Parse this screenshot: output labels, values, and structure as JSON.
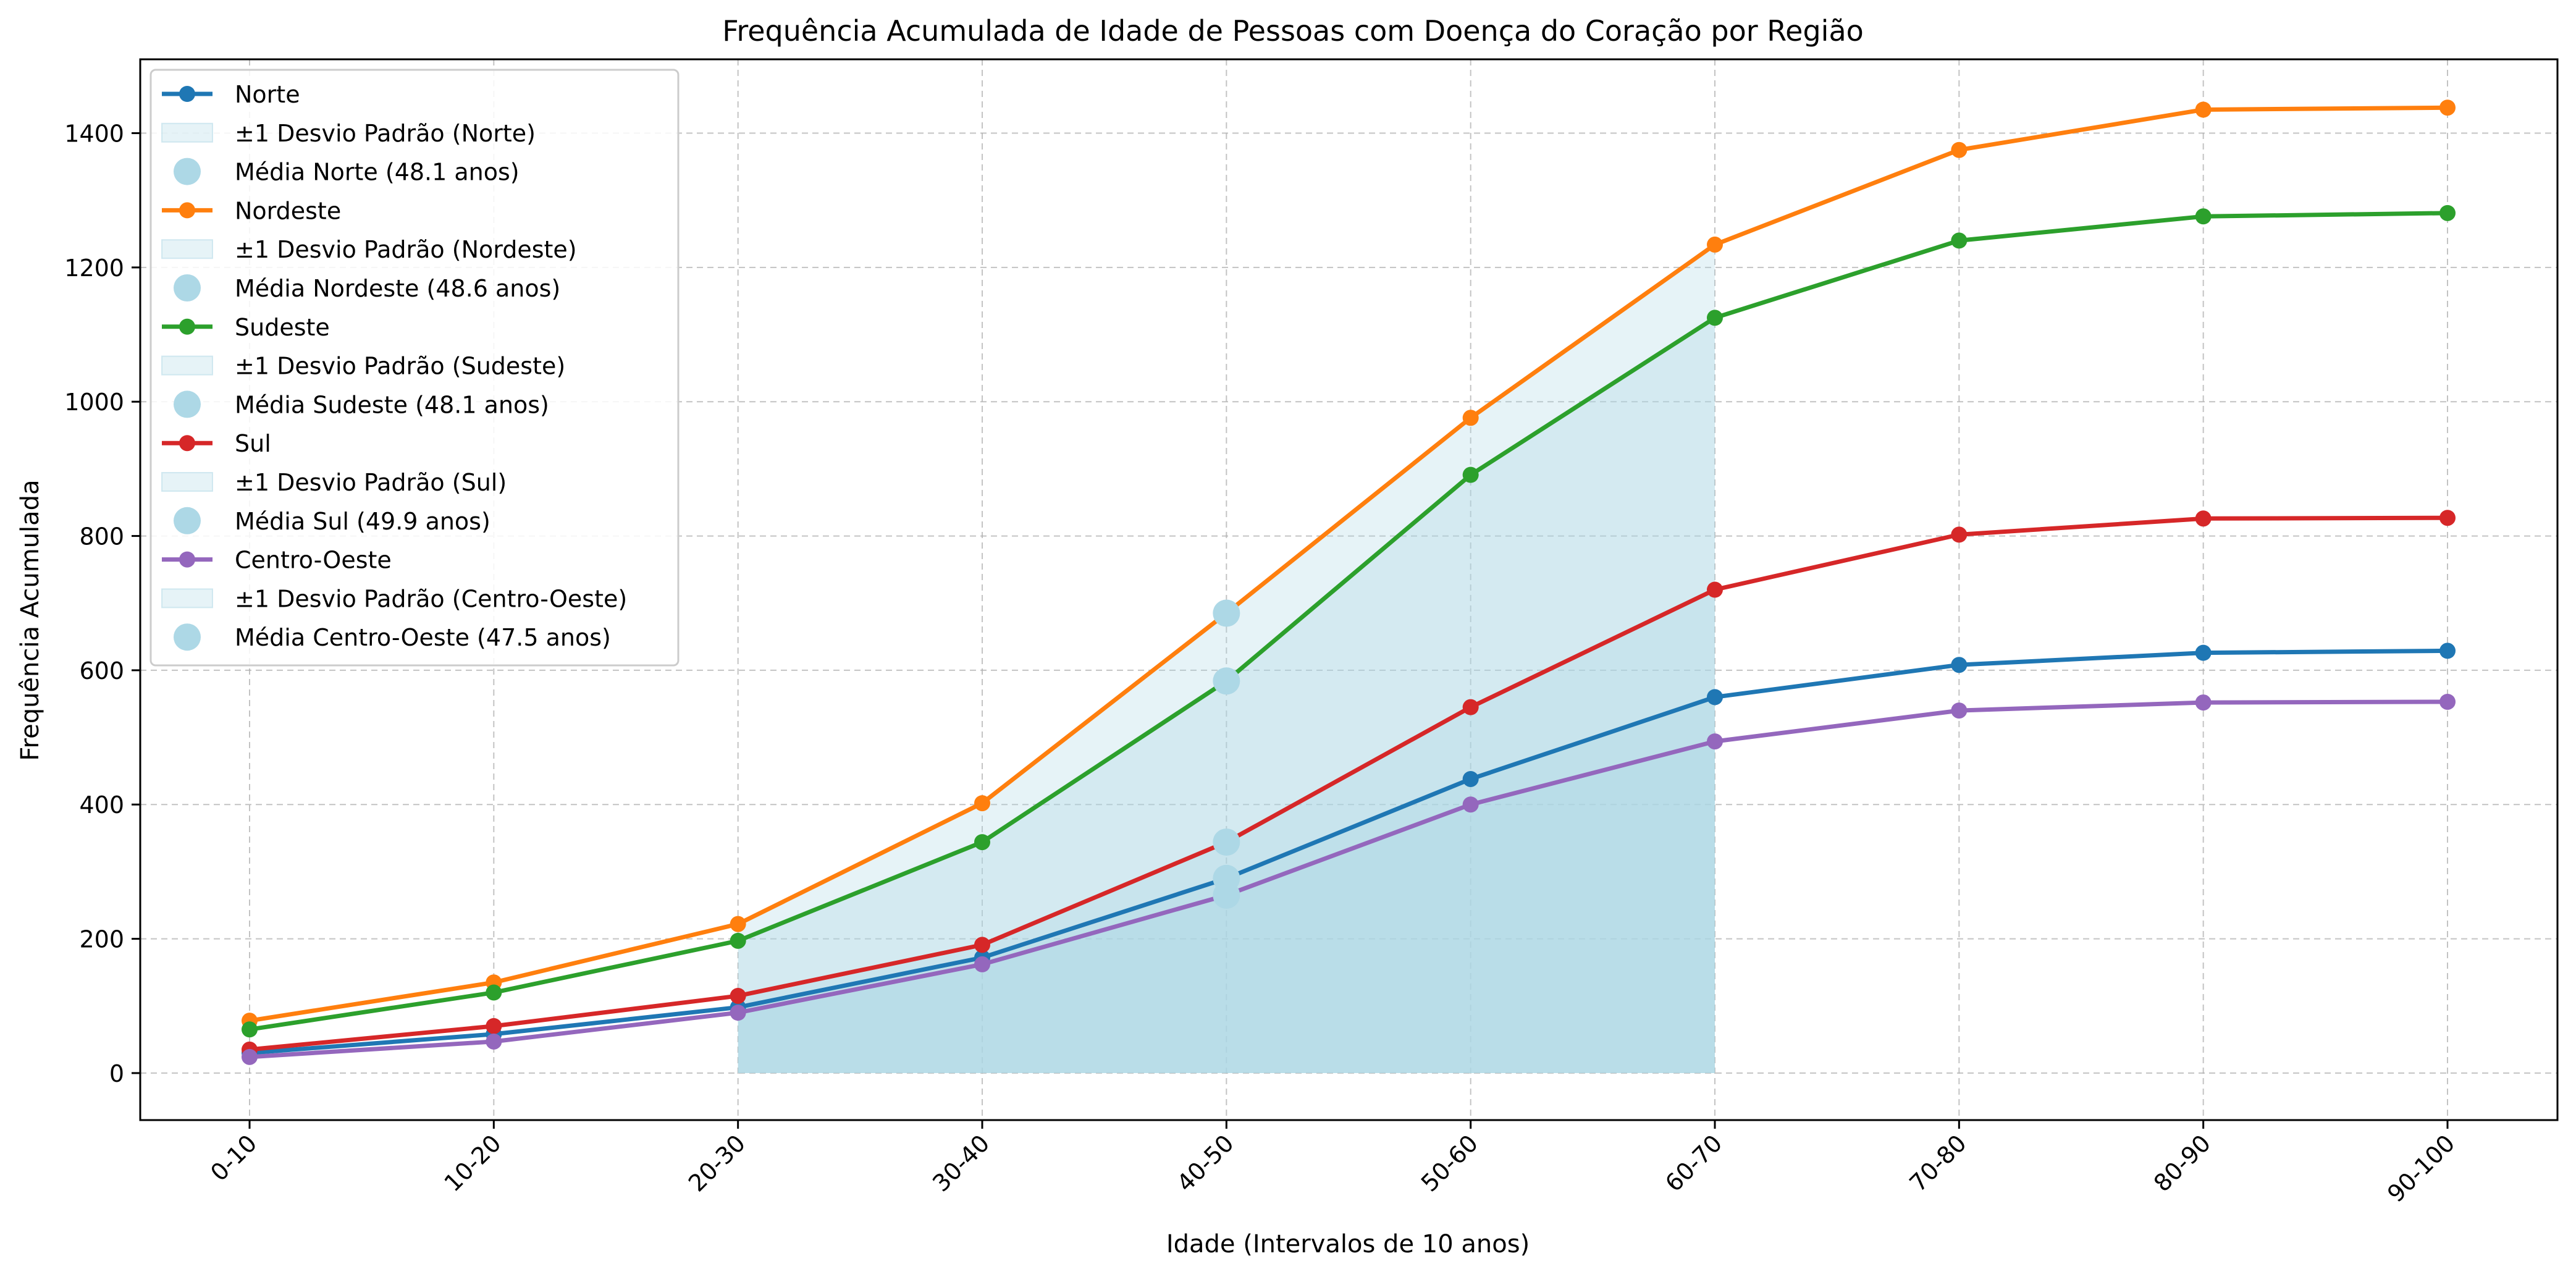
{
  "chart_data": {
    "type": "line",
    "title": "Frequência Acumulada de Idade de Pessoas com Doença do Coração por Região",
    "xlabel": "Idade (Intervalos de 10 anos)",
    "ylabel": "Frequência Acumulada",
    "categories": [
      "0-10",
      "10-20",
      "20-30",
      "30-40",
      "40-50",
      "50-60",
      "60-70",
      "70-80",
      "80-90",
      "90-100"
    ],
    "ylim": [
      -70,
      1510
    ],
    "yticks": [
      0,
      200,
      400,
      600,
      800,
      1000,
      1200,
      1400
    ],
    "grid": true,
    "legend_position": "top-left",
    "series": [
      {
        "name": "Norte",
        "color": "#1f77b4",
        "values": [
          30,
          58,
          98,
          172,
          290,
          438,
          560,
          608,
          626,
          629
        ]
      },
      {
        "name": "Nordeste",
        "color": "#ff7f0e",
        "values": [
          78,
          135,
          222,
          402,
          685,
          976,
          1234,
          1375,
          1435,
          1438
        ]
      },
      {
        "name": "Sudeste",
        "color": "#2ca02c",
        "values": [
          65,
          120,
          197,
          344,
          584,
          891,
          1125,
          1240,
          1276,
          1281
        ]
      },
      {
        "name": "Sul",
        "color": "#d62728",
        "values": [
          35,
          70,
          115,
          191,
          344,
          545,
          720,
          802,
          826,
          827
        ]
      },
      {
        "name": "Centro-Oeste",
        "color": "#9467bd",
        "values": [
          24,
          47,
          90,
          162,
          265,
          400,
          494,
          540,
          552,
          553
        ]
      }
    ],
    "std_band": {
      "color": "#add8e6",
      "from_category": "20-30",
      "to_category": "60-70"
    },
    "mean_markers": {
      "color": "#add8e6",
      "category": "40-50"
    },
    "legend": [
      {
        "kind": "line",
        "series": 0,
        "label": "Norte"
      },
      {
        "kind": "band",
        "label": "±1 Desvio Padrão (Norte)"
      },
      {
        "kind": "marker",
        "label": "Média Norte (48.1 anos)"
      },
      {
        "kind": "line",
        "series": 1,
        "label": "Nordeste"
      },
      {
        "kind": "band",
        "label": "±1 Desvio Padrão (Nordeste)"
      },
      {
        "kind": "marker",
        "label": "Média Nordeste (48.6 anos)"
      },
      {
        "kind": "line",
        "series": 2,
        "label": "Sudeste"
      },
      {
        "kind": "band",
        "label": "±1 Desvio Padrão (Sudeste)"
      },
      {
        "kind": "marker",
        "label": "Média Sudeste (48.1 anos)"
      },
      {
        "kind": "line",
        "series": 3,
        "label": "Sul"
      },
      {
        "kind": "band",
        "label": "±1 Desvio Padrão (Sul)"
      },
      {
        "kind": "marker",
        "label": "Média Sul (49.9 anos)"
      },
      {
        "kind": "line",
        "series": 4,
        "label": "Centro-Oeste"
      },
      {
        "kind": "band",
        "label": "±1 Desvio Padrão (Centro-Oeste)"
      },
      {
        "kind": "marker",
        "label": "Média Centro-Oeste (47.5 anos)"
      }
    ]
  }
}
